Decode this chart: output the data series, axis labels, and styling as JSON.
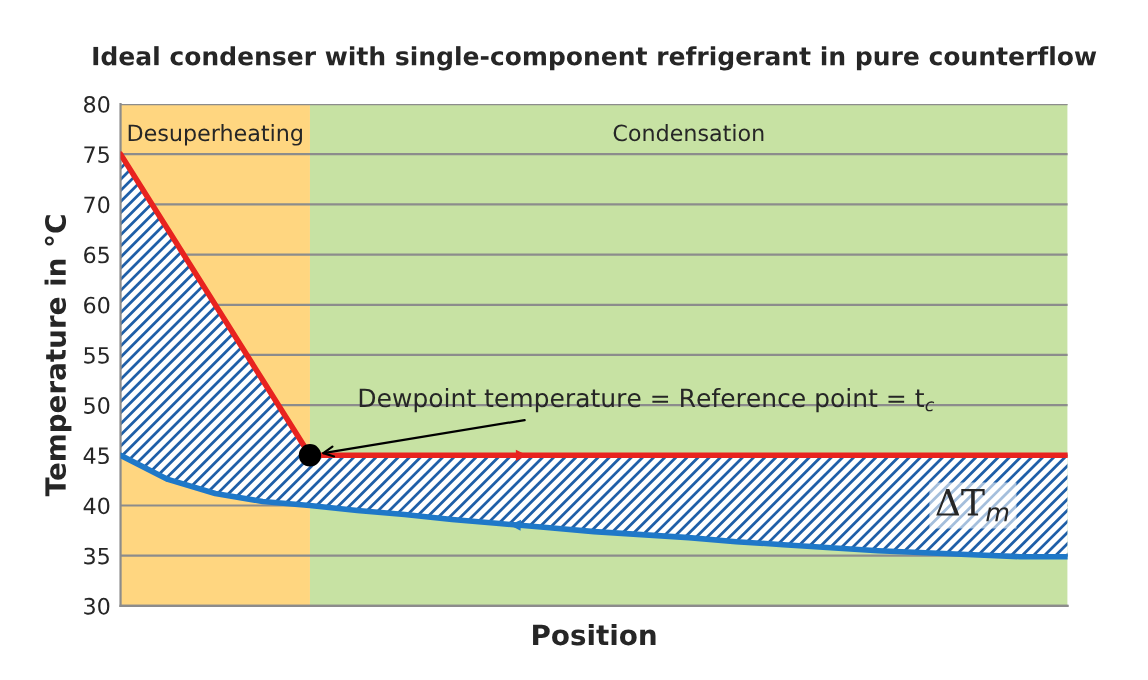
{
  "chart_data": {
    "type": "line",
    "title": "Ideal condenser with single-component refrigerant in pure counterflow",
    "xlabel": "Position",
    "ylabel": "Temperature in °C",
    "categories": [
      null,
      null,
      null,
      null,
      null,
      null,
      null,
      null,
      null,
      null,
      null,
      null,
      null,
      null,
      null,
      null,
      null,
      null,
      null,
      null,
      null
    ],
    "ylim": [
      30,
      80
    ],
    "yticks": [
      30,
      35,
      40,
      45,
      50,
      55,
      60,
      65,
      70,
      75,
      80
    ],
    "grid": "y",
    "line_style": "solid",
    "series": [
      {
        "color": "#e8231f",
        "values": [
          75,
          67.5,
          60,
          52.5,
          45,
          45,
          45,
          45,
          45,
          45,
          45,
          45,
          45,
          45,
          45,
          45,
          45,
          45,
          45,
          45,
          45
        ],
        "lower": [
          45,
          42.6,
          41.2,
          40.4,
          40,
          39.5,
          39.1,
          38.6,
          38.2,
          37.8,
          37.4,
          37.1,
          36.8,
          36.4,
          36.1,
          35.8,
          35.5,
          35.3,
          35.1,
          34.9,
          34.9
        ],
        "upper": [
          75,
          67.5,
          60,
          52.5,
          45,
          45,
          45,
          45,
          45,
          45,
          45,
          45,
          45,
          45,
          45,
          45,
          45,
          45,
          45,
          45,
          45
        ]
      },
      {
        "color": "#1f78c8",
        "values": [
          45,
          42.6,
          41.2,
          40.4,
          40,
          39.5,
          39.1,
          38.6,
          38.2,
          37.8,
          37.4,
          37.1,
          36.8,
          36.4,
          36.1,
          35.8,
          35.5,
          35.3,
          35.1,
          34.9,
          34.9
        ]
      },
      {
        "type": "scatter",
        "color": "#000000",
        "values": [
          null,
          null,
          null,
          null,
          45,
          null,
          null,
          null,
          null,
          null,
          null,
          null,
          null,
          null,
          null,
          null,
          null,
          null,
          null,
          null,
          null
        ]
      }
    ],
    "annotations": [
      "Desuperheating",
      "Condensation",
      {
        "text": "Dewpoint temperature = Reference point = t$_{c}$",
        "y": 45
      },
      "ΔT$_{m}$"
    ]
  }
}
